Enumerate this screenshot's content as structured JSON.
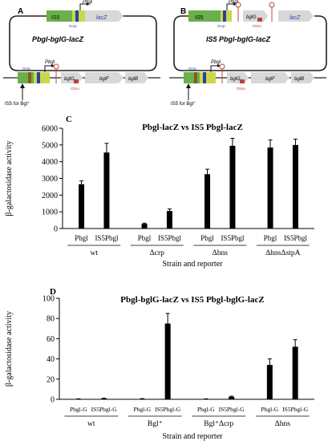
{
  "panel_a": {
    "letter": "A",
    "plasmid_title": "Pbgl-bglG-lacZ",
    "title_prefix": "P",
    "title_italic": "bgl-",
    "title_mid": "bglG",
    "title_end": "-lacZ",
    "is5_label": "IS5",
    "lacz_label": "lacZ",
    "pbgl_label": "Pbgl",
    "ocrp_label": "Ocrp",
    "ohns_label": "Ohns",
    "bglG_label": "bglG",
    "bglF_label": "bglF",
    "bglB_label": "bglB",
    "arrow_label": "IS5 for Bgl⁺"
  },
  "panel_b": {
    "letter": "B",
    "plasmid_title": "IS5 Pbgl-bglG-lacZ",
    "is5_label": "IS5",
    "lacz_label": "lacZ",
    "pbgl_label": "Pbgl",
    "ocrp_label": "Ocrp",
    "ohns_label": "Ohns",
    "bglG_label": "bglG",
    "bglF_label": "bglF",
    "bglB_label": "bglB",
    "arrow_label": "IS5 for Bgl⁺"
  },
  "chart_data": [
    {
      "panel": "C",
      "type": "bar",
      "title": "Pbgl-lacZ vs IS5 Pbgl-lacZ",
      "ylabel": "β-galactosidase activity",
      "xlabel": "Strain and reporter",
      "ylim": [
        0,
        6000
      ],
      "yticks": [
        "0",
        "1000",
        "2000",
        "3000",
        "4000",
        "5000",
        "6000"
      ],
      "groups": [
        {
          "name": "wt",
          "bars": [
            {
              "label": "Pbgl",
              "value": 2650,
              "err": 200
            },
            {
              "label": "IS5Pbgl",
              "value": 4550,
              "err": 550
            }
          ]
        },
        {
          "name": "Δcrp",
          "bars": [
            {
              "label": "Pbgl",
              "value": 280,
              "err": 40
            },
            {
              "label": "IS5Pbgl",
              "value": 1050,
              "err": 120
            }
          ]
        },
        {
          "name": "Δhns",
          "bars": [
            {
              "label": "Pbgl",
              "value": 3250,
              "err": 300
            },
            {
              "label": "IS5Pbgl",
              "value": 4950,
              "err": 450
            }
          ]
        },
        {
          "name": "ΔhnsΔstpA",
          "bars": [
            {
              "label": "Pbgl",
              "value": 4850,
              "err": 450
            },
            {
              "label": "IS5Pbgl",
              "value": 5000,
              "err": 350
            }
          ]
        }
      ]
    },
    {
      "panel": "D",
      "type": "bar",
      "title": "Pbgl-bglG-lacZ vs IS5 Pbgl-bglG-lacZ",
      "ylabel": "β-galactosidase activity",
      "xlabel": "Strain and reporter",
      "ylim": [
        0,
        100
      ],
      "yticks": [
        "0",
        "20",
        "40",
        "60",
        "80",
        "100"
      ],
      "groups": [
        {
          "name": "wt",
          "bars": [
            {
              "label": "Pbgl-G",
              "value": 0.3,
              "err": 0.2
            },
            {
              "label": "IS5Pbgl-G",
              "value": 0.8,
              "err": 0.3
            }
          ]
        },
        {
          "name": "Bgl⁺",
          "bars": [
            {
              "label": "Pbgl-G",
              "value": 0.5,
              "err": 0.2
            },
            {
              "label": "IS5Pbgl-G",
              "value": 75,
              "err": 10
            }
          ]
        },
        {
          "name": "Bgl⁺Δcrp",
          "bars": [
            {
              "label": "Pbgl-G",
              "value": 0.3,
              "err": 0.2
            },
            {
              "label": "IS5Pbgl-G",
              "value": 2.5,
              "err": 0.6
            }
          ]
        },
        {
          "name": "Δhns",
          "bars": [
            {
              "label": "Pbgl-G",
              "value": 34,
              "err": 6
            },
            {
              "label": "IS5Pbgl-G",
              "value": 52,
              "err": 7
            }
          ]
        }
      ]
    }
  ]
}
